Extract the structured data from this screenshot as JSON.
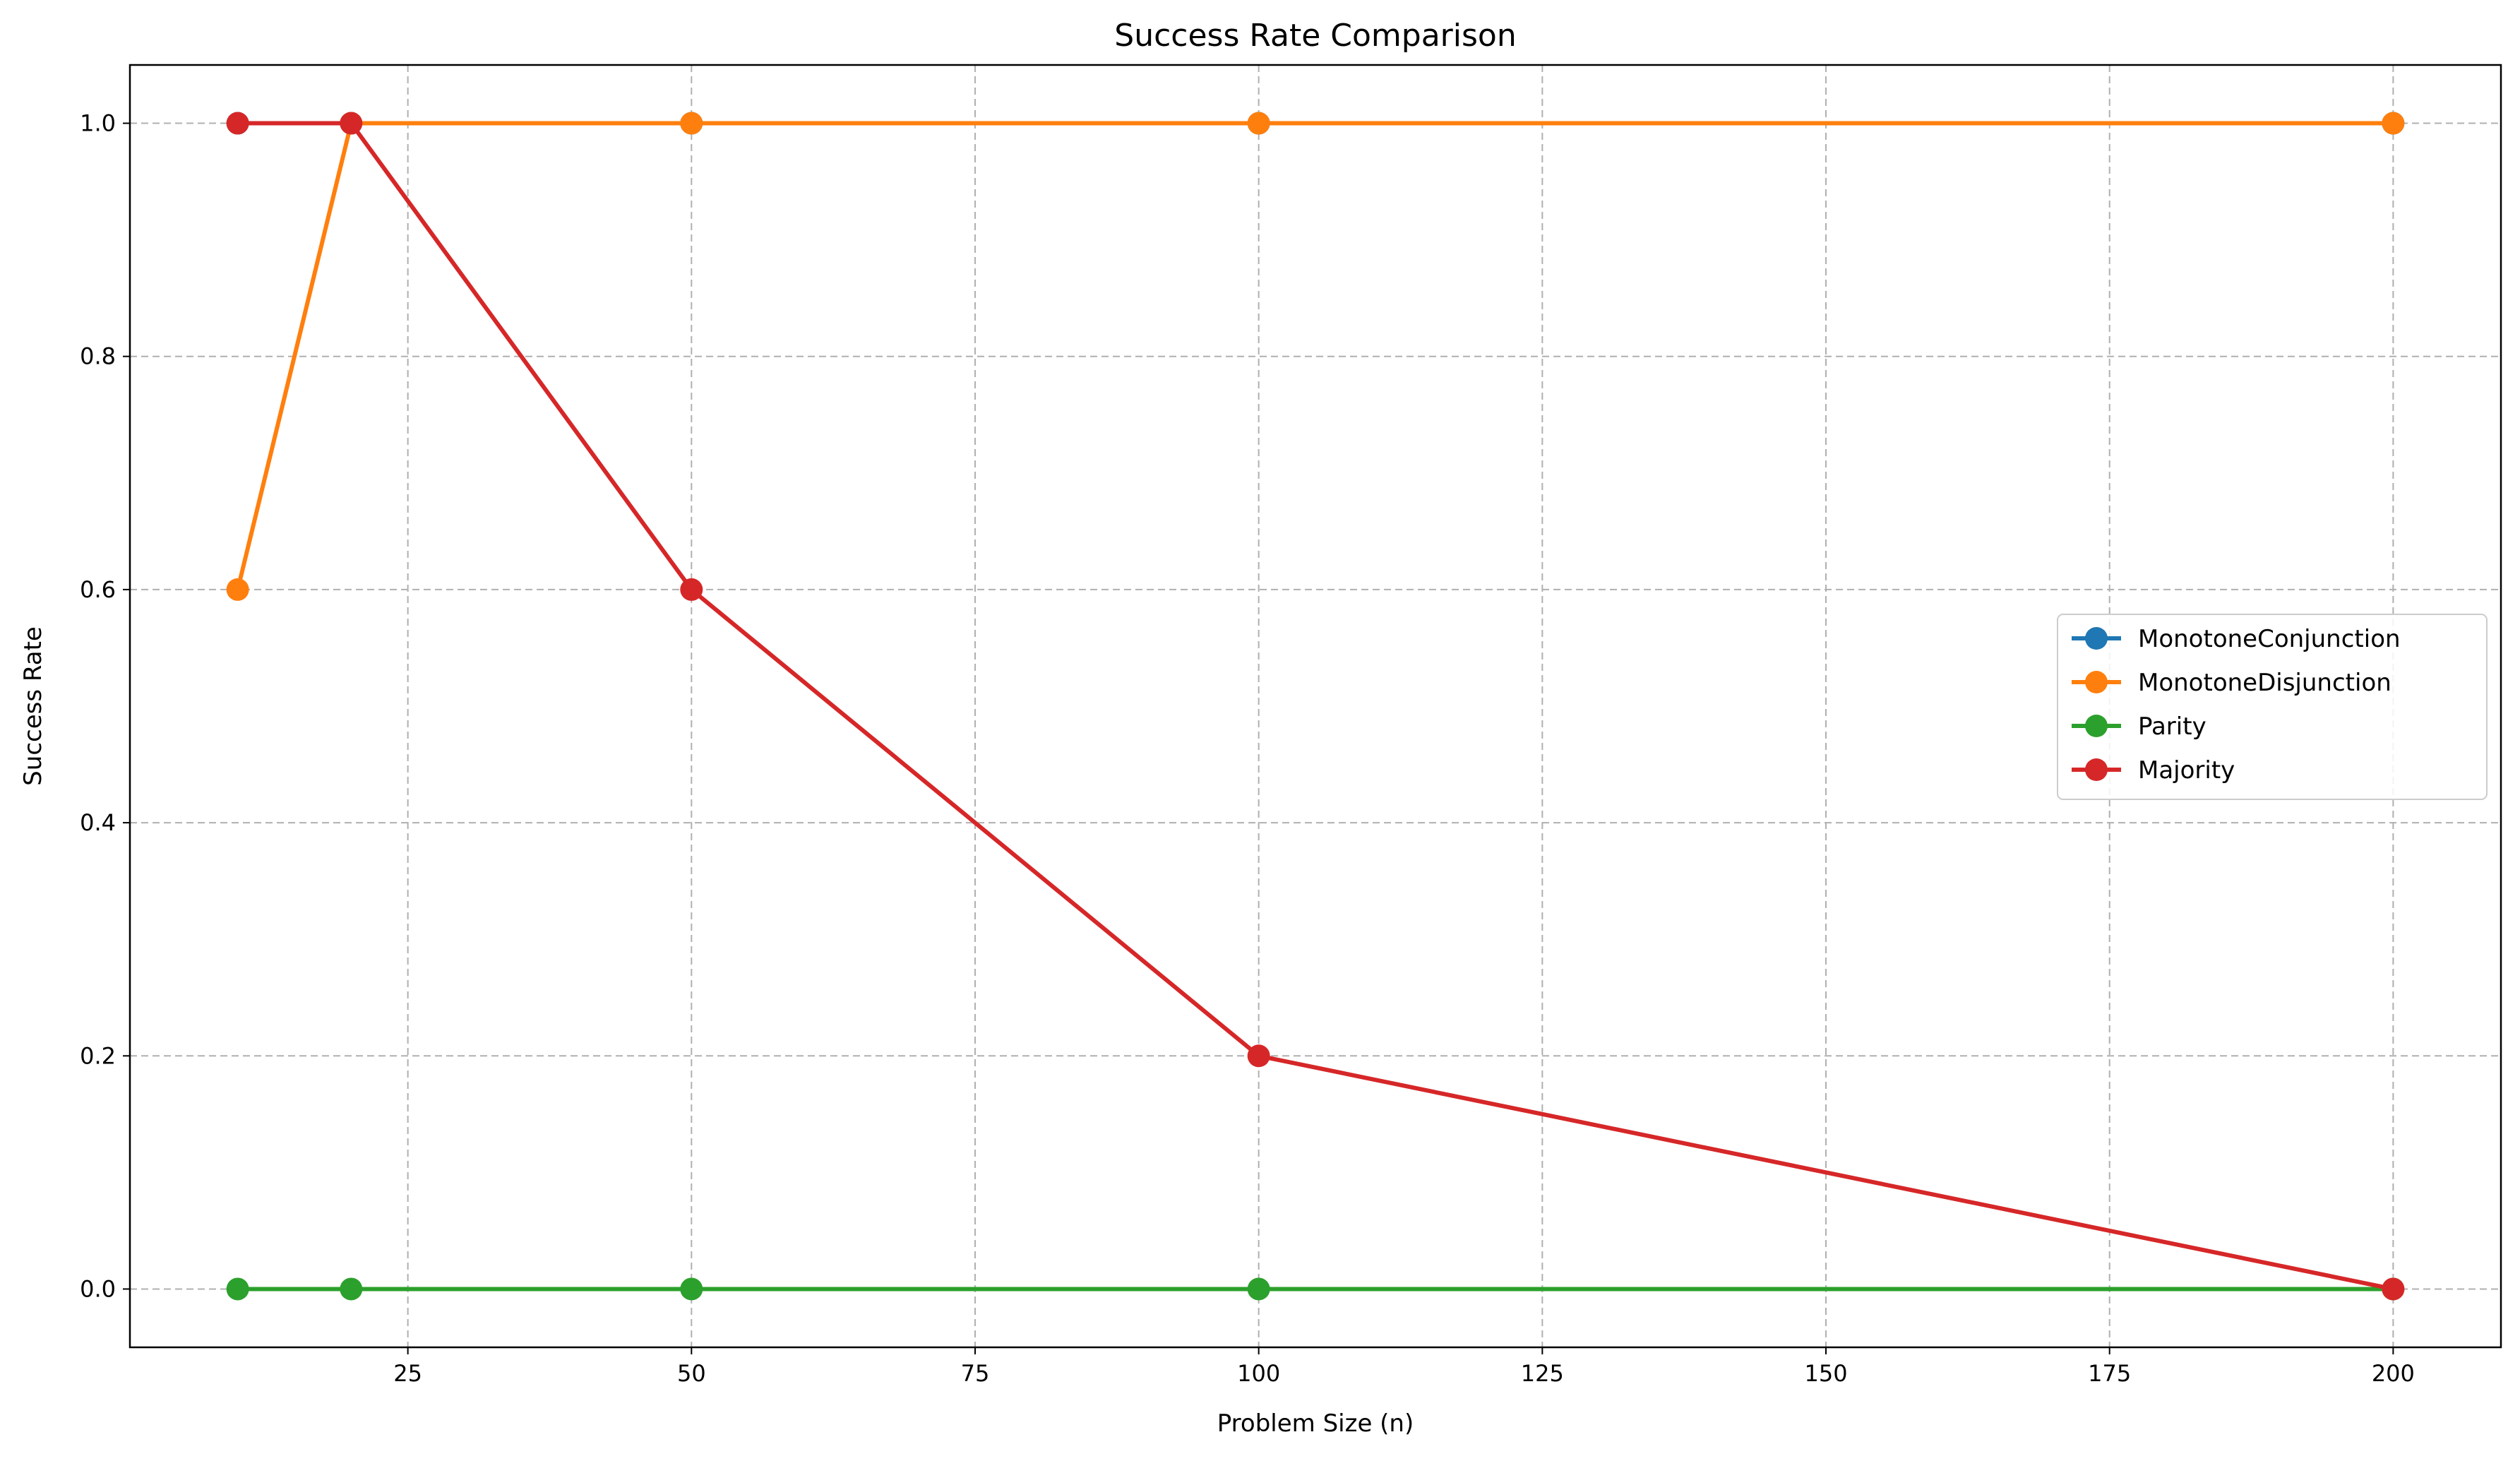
{
  "chart_data": {
    "type": "line",
    "title": "Success Rate Comparison",
    "xlabel": "Problem Size (n)",
    "ylabel": "Success Rate",
    "x": [
      10,
      20,
      50,
      100,
      200
    ],
    "xlim": [
      0.5,
      209.5
    ],
    "ylim": [
      -0.05,
      1.05
    ],
    "xticks": [
      25,
      50,
      75,
      100,
      125,
      150,
      175,
      200
    ],
    "yticks": [
      0.0,
      0.2,
      0.4,
      0.6,
      0.8,
      1.0
    ],
    "xtick_labels": [
      "25",
      "50",
      "75",
      "100",
      "125",
      "150",
      "175",
      "200"
    ],
    "ytick_labels": [
      "0.0",
      "0.2",
      "0.4",
      "0.6",
      "0.8",
      "1.0"
    ],
    "grid": true,
    "legend_position": "center-right",
    "series": [
      {
        "name": "MonotoneConjunction",
        "color": "#1f77b4",
        "values": [
          1.0,
          1.0,
          1.0,
          1.0,
          1.0
        ]
      },
      {
        "name": "MonotoneDisjunction",
        "color": "#ff7f0e",
        "values": [
          0.6,
          1.0,
          1.0,
          1.0,
          1.0
        ]
      },
      {
        "name": "Parity",
        "color": "#2ca02c",
        "values": [
          0.0,
          0.0,
          0.0,
          0.0,
          0.0
        ]
      },
      {
        "name": "Majority",
        "color": "#d62728",
        "values": [
          1.0,
          1.0,
          0.6,
          0.2,
          0.0
        ]
      }
    ]
  }
}
